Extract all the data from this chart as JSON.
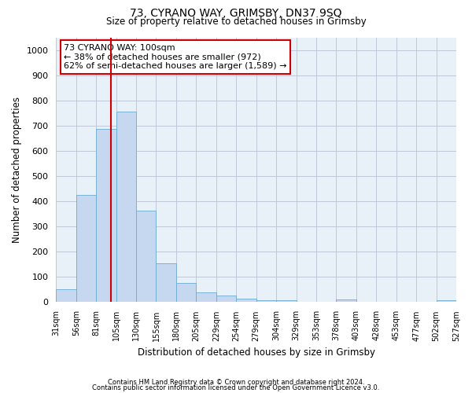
{
  "title": "73, CYRANO WAY, GRIMSBY, DN37 9SQ",
  "subtitle": "Size of property relative to detached houses in Grimsby",
  "xlabel": "Distribution of detached houses by size in Grimsby",
  "ylabel": "Number of detached properties",
  "footer_line1": "Contains HM Land Registry data © Crown copyright and database right 2024.",
  "footer_line2": "Contains public sector information licensed under the Open Government Licence v3.0.",
  "annotation_title": "73 CYRANO WAY: 100sqm",
  "annotation_line1": "← 38% of detached houses are smaller (972)",
  "annotation_line2": "62% of semi-detached houses are larger (1,589) →",
  "property_size_sqm": 100,
  "bin_edges": [
    31,
    56,
    81,
    106,
    131,
    156,
    181,
    206,
    231,
    256,
    281,
    306,
    331,
    356,
    381,
    406,
    431,
    456,
    481,
    506,
    531
  ],
  "bin_labels": [
    "31sqm",
    "56sqm",
    "81sqm",
    "105sqm",
    "130sqm",
    "155sqm",
    "180sqm",
    "205sqm",
    "229sqm",
    "254sqm",
    "279sqm",
    "304sqm",
    "329sqm",
    "353sqm",
    "378sqm",
    "403sqm",
    "428sqm",
    "453sqm",
    "477sqm",
    "502sqm",
    "527sqm"
  ],
  "bar_heights": [
    50,
    425,
    688,
    757,
    363,
    155,
    77,
    40,
    27,
    15,
    9,
    7,
    0,
    0,
    12,
    0,
    0,
    0,
    0,
    9
  ],
  "bar_color": "#c5d8f0",
  "bar_edge_color": "#6aaad4",
  "red_line_color": "#cc0000",
  "annotation_box_color": "#cc0000",
  "background_color": "#ffffff",
  "axes_bg_color": "#e8f0f8",
  "grid_color": "#c0c8d8",
  "ylim": [
    0,
    1050
  ],
  "yticks": [
    0,
    100,
    200,
    300,
    400,
    500,
    600,
    700,
    800,
    900,
    1000
  ]
}
